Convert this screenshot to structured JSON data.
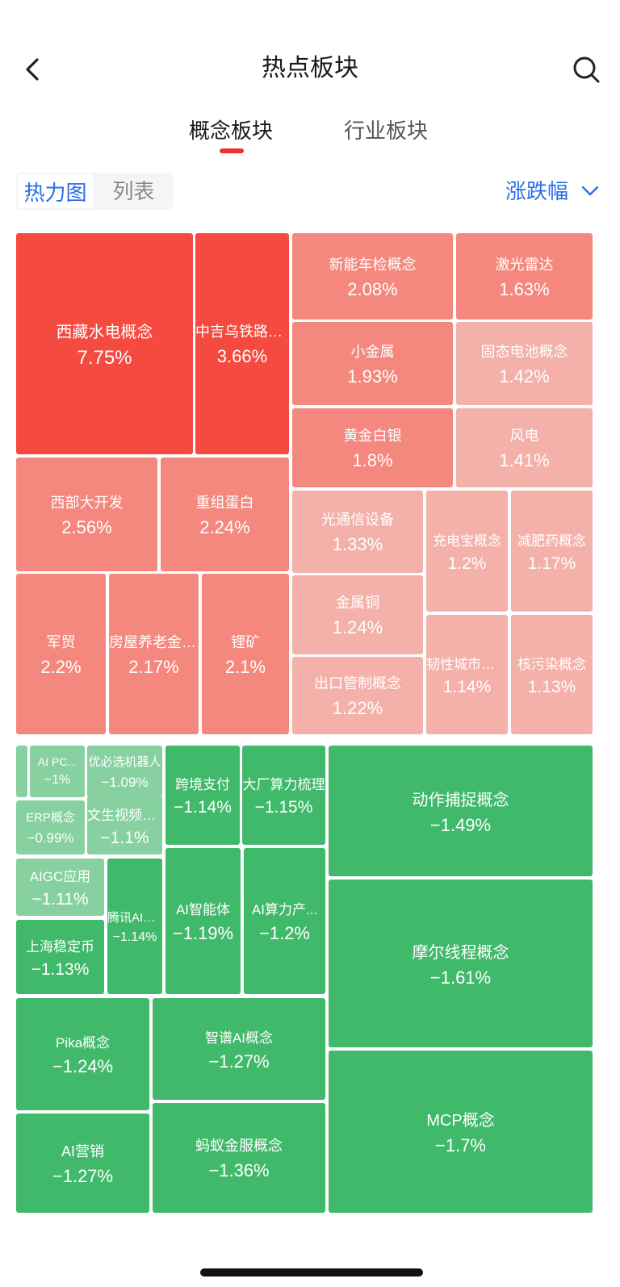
{
  "header": {
    "title": "热点板块",
    "back_icon": "chevron-left-icon",
    "search_icon": "search-icon"
  },
  "tabs": [
    {
      "label": "概念板块",
      "active": true
    },
    {
      "label": "行业板块",
      "active": false
    }
  ],
  "view_toggle": {
    "heatmap_label": "热力图",
    "list_label": "列表",
    "active": "热力图"
  },
  "sort": {
    "label": "涨跌幅",
    "icon": "chevron-down-icon"
  },
  "colors": {
    "up_strong": "#f44a3f",
    "up_mid": "#f4887e",
    "up_light": "#f4b1aa",
    "down_strong": "#41b96b",
    "down_light": "#86d19f",
    "accent": "#2a6ee8",
    "tab_indicator": "#f0302c"
  },
  "chart_data": {
    "type": "heatmap",
    "gainers": [
      {
        "name": "西藏水电概念",
        "change": "7.75%"
      },
      {
        "name": "中吉乌铁路概...",
        "change": "3.66%"
      },
      {
        "name": "新能车检概念",
        "change": "2.08%"
      },
      {
        "name": "激光雷达",
        "change": "1.63%"
      },
      {
        "name": "小金属",
        "change": "1.93%"
      },
      {
        "name": "固态电池概念",
        "change": "1.42%"
      },
      {
        "name": "黄金白银",
        "change": "1.8%"
      },
      {
        "name": "风电",
        "change": "1.41%"
      },
      {
        "name": "西部大开发",
        "change": "2.56%"
      },
      {
        "name": "重组蛋白",
        "change": "2.24%"
      },
      {
        "name": "光通信设备",
        "change": "1.33%"
      },
      {
        "name": "充电宝概念",
        "change": "1.2%"
      },
      {
        "name": "减肥药概念",
        "change": "1.17%"
      },
      {
        "name": "金属铜",
        "change": "1.24%"
      },
      {
        "name": "军贸",
        "change": "2.2%"
      },
      {
        "name": "房屋养老金概...",
        "change": "2.17%"
      },
      {
        "name": "锂矿",
        "change": "2.1%"
      },
      {
        "name": "韧性城市概念",
        "change": "1.14%"
      },
      {
        "name": "核污染概念",
        "change": "1.13%"
      },
      {
        "name": "出口管制概念",
        "change": "1.22%"
      }
    ],
    "losers": [
      {
        "name": "",
        "change": ""
      },
      {
        "name": "AI PC...",
        "change": "−1%"
      },
      {
        "name": "优必选机器人",
        "change": "−1.09%"
      },
      {
        "name": "跨境支付",
        "change": "−1.14%"
      },
      {
        "name": "大厂算力梳理",
        "change": "−1.15%"
      },
      {
        "name": "动作捕捉概念",
        "change": "−1.49%"
      },
      {
        "name": "ERP概念",
        "change": "−0.99%"
      },
      {
        "name": "文生视频概念",
        "change": "−1.1%"
      },
      {
        "name": "AIGC应用",
        "change": "−1.11%"
      },
      {
        "name": "腾讯AI概念",
        "change": "−1.14%"
      },
      {
        "name": "AI智能体",
        "change": "−1.19%"
      },
      {
        "name": "AI算力产...",
        "change": "−1.2%"
      },
      {
        "name": "摩尔线程概念",
        "change": "−1.61%"
      },
      {
        "name": "上海稳定币",
        "change": "−1.13%"
      },
      {
        "name": "Pika概念",
        "change": "−1.24%"
      },
      {
        "name": "智谱AI概念",
        "change": "−1.27%"
      },
      {
        "name": "MCP概念",
        "change": "−1.7%"
      },
      {
        "name": "AI营销",
        "change": "−1.27%"
      },
      {
        "name": "蚂蚁金服概念",
        "change": "−1.36%"
      }
    ]
  }
}
